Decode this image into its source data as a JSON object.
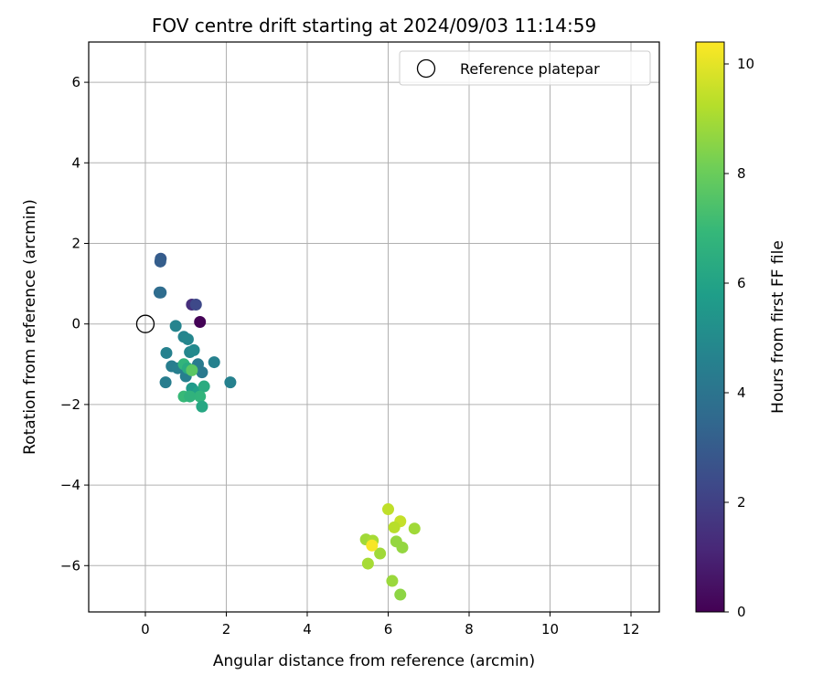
{
  "chart_data": {
    "type": "scatter",
    "title": "FOV centre drift starting at 2024/09/03 11:14:59",
    "xlabel": "Angular distance from reference (arcmin)",
    "ylabel": "Rotation from reference (arcmin)",
    "xlim": [
      -1.4,
      12.7
    ],
    "ylim": [
      -7.15,
      7.0
    ],
    "xticks": [
      0,
      2,
      4,
      6,
      8,
      10,
      12
    ],
    "yticks": [
      -6,
      -4,
      -2,
      0,
      2,
      4,
      6
    ],
    "grid": true,
    "legend": {
      "position": "top-right",
      "entries": [
        "Reference platepar"
      ]
    },
    "reference_point": {
      "x": 0,
      "y": 0,
      "label": "Reference platepar",
      "marker": "open-circle"
    },
    "colorbar": {
      "label": "Hours from first FF file",
      "range": [
        0,
        10.4
      ],
      "ticks": [
        0,
        2,
        4,
        6,
        8,
        10
      ],
      "colormap": "viridis"
    },
    "series": [
      {
        "x": [
          1.35,
          1.15,
          1.25,
          0.38,
          0.37,
          0.35,
          0.38,
          0.75,
          0.95,
          1.05,
          1.1,
          1.2,
          0.52,
          0.65,
          0.8,
          1.0,
          1.3,
          1.4,
          1.7,
          2.1,
          0.5,
          0.95,
          1.05,
          1.15,
          1.3,
          1.45,
          1.35,
          1.4,
          0.95,
          1.1,
          1.15,
          6.0,
          6.3,
          6.15,
          6.65,
          5.45,
          5.62,
          5.8,
          6.2,
          6.35,
          5.5,
          6.1,
          6.3,
          5.6
        ],
        "y": [
          0.05,
          0.48,
          0.48,
          1.62,
          1.55,
          0.78,
          0.78,
          -0.05,
          -0.32,
          -0.38,
          -0.7,
          -0.65,
          -0.72,
          -1.05,
          -1.1,
          -1.3,
          -1.0,
          -1.2,
          -0.95,
          -1.45,
          -1.45,
          -1.0,
          -1.1,
          -1.6,
          -1.7,
          -1.55,
          -1.8,
          -2.05,
          -1.8,
          -1.8,
          -1.15,
          -4.6,
          -4.9,
          -5.05,
          -5.08,
          -5.35,
          -5.38,
          -5.7,
          -5.4,
          -5.55,
          -5.95,
          -6.38,
          -6.72,
          -5.5
        ],
        "hours": [
          0.05,
          1.4,
          2.3,
          3.0,
          3.1,
          3.6,
          3.7,
          4.7,
          4.7,
          4.8,
          4.8,
          4.9,
          4.6,
          4.4,
          4.5,
          4.5,
          4.3,
          4.2,
          4.6,
          4.6,
          4.4,
          6.8,
          6.4,
          5.6,
          5.9,
          6.4,
          6.8,
          6.2,
          7.0,
          6.7,
          7.7,
          9.4,
          9.5,
          9.3,
          8.9,
          8.9,
          9.0,
          8.9,
          8.7,
          8.7,
          9.0,
          8.8,
          8.6,
          10.3
        ]
      }
    ]
  }
}
